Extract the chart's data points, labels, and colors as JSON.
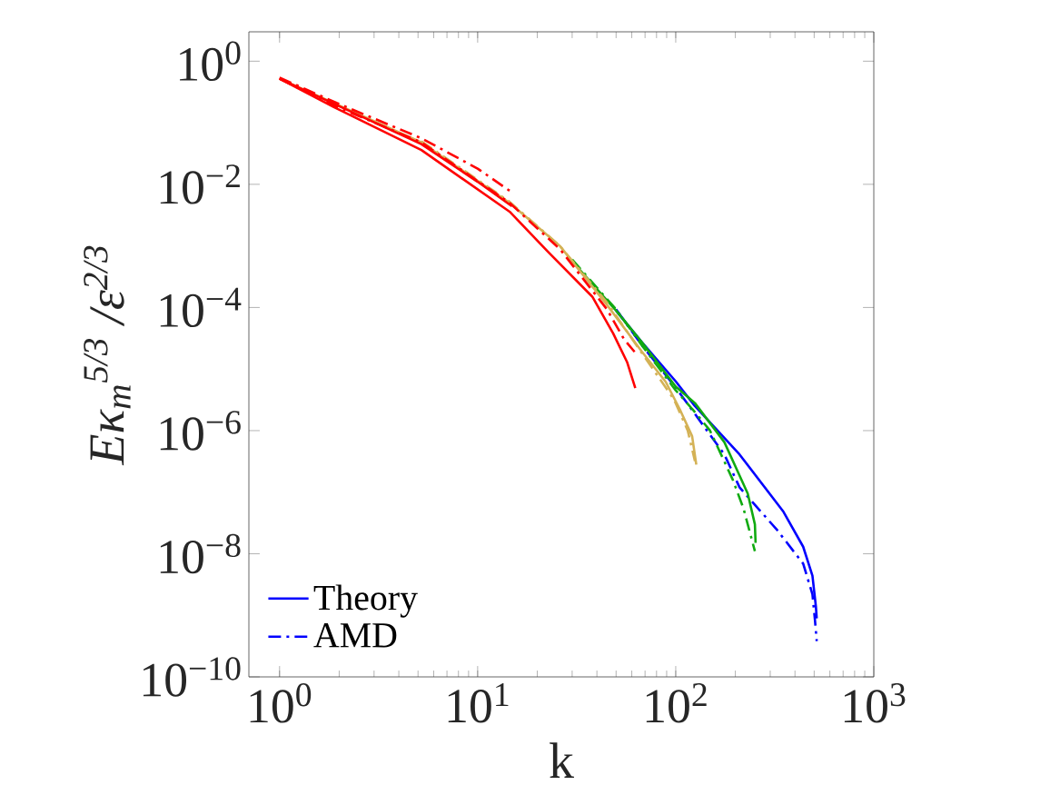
{
  "chart_data": {
    "type": "line",
    "xlabel": "k",
    "ylabel": "Eκ$_{m}$$^{5/3}$ /ε$^{2/3}$",
    "log": "xy",
    "xlim": [
      0.7,
      1000
    ],
    "ylim": [
      1e-10,
      3
    ],
    "xticks": [
      {
        "value": 1,
        "label": "10$^{0}$"
      },
      {
        "value": 10,
        "label": "10$^{1}$"
      },
      {
        "value": 100,
        "label": "10$^{2}$"
      },
      {
        "value": 1000,
        "label": "10$^{3}$"
      }
    ],
    "yticks": [
      {
        "value": 1e-10,
        "label": "10$^{−10}$"
      },
      {
        "value": 1e-08,
        "label": "10$^{−8}$"
      },
      {
        "value": 1e-06,
        "label": "10$^{−6}$"
      },
      {
        "value": 0.0001,
        "label": "10$^{−4}$"
      },
      {
        "value": 0.01,
        "label": "10$^{−2}$"
      },
      {
        "value": 1,
        "label": "10$^{0}$"
      }
    ],
    "legend": "bottom left",
    "series": [
      {
        "color": "#0000ff",
        "line_style": "solid",
        "name": "Theory",
        "x": [
          50,
          67,
          100,
          125,
          210,
          350,
          440,
          490,
          510,
          515
        ],
        "values": [
          8.9e-05,
          2.8e-05,
          6.3e-06,
          2.5e-06,
          4.1e-07,
          4.8e-08,
          1.3e-08,
          4.4e-09,
          1.4e-09,
          8.9e-10
        ]
      },
      {
        "color": "#0000ff",
        "line_style": "dashdot",
        "name": "AMD",
        "x": [
          50,
          67,
          100,
          176,
          210,
          326,
          440,
          490,
          505,
          515
        ],
        "values": [
          9.3e-05,
          2.5e-05,
          5e-06,
          4.1e-07,
          1.2e-07,
          2.4e-08,
          6.9e-09,
          2.2e-09,
          8.1e-10,
          3.8e-10
        ]
      },
      {
        "color": "#10aa10",
        "line_style": "solid",
        "x": [
          30,
          50,
          67,
          100,
          125,
          176,
          231,
          251,
          253
        ],
        "values": [
          0.00056,
          8.9e-05,
          2.8e-05,
          5.2e-06,
          2.8e-06,
          6.5e-07,
          9.5e-08,
          3e-08,
          1.5e-08
        ]
      },
      {
        "color": "#10aa10",
        "line_style": "dashdot",
        "x": [
          30,
          50,
          67,
          100,
          125,
          149,
          194,
          220,
          251
        ],
        "values": [
          0.0006,
          9.3e-05,
          2.5e-05,
          4.5e-06,
          2e-06,
          1e-06,
          1.6e-07,
          5.4e-08,
          1.1e-08
        ]
      },
      {
        "color": "#d4b256",
        "line_style": "solid",
        "x": [
          1,
          5.2,
          14.5,
          26,
          45,
          67.6,
          89,
          105,
          121,
          127
        ],
        "values": [
          0.52,
          0.048,
          0.005,
          0.001,
          0.00011,
          1.9e-05,
          6.2e-06,
          2.2e-06,
          8.1e-07,
          2.8e-07
        ]
      },
      {
        "color": "#d4b256",
        "line_style": "dashdot",
        "x": [
          5.2,
          14.5,
          26,
          45,
          67.6,
          98,
          115,
          125
        ],
        "values": [
          0.05,
          0.0052,
          0.001,
          0.00012,
          1.8e-05,
          3.2e-06,
          1e-06,
          3.2e-07
        ]
      },
      {
        "color": "#ff0000",
        "line_style": "solid",
        "x": [
          1,
          1.88,
          5.2,
          14.5,
          22.6,
          37.9,
          48.3,
          56.8,
          62.5
        ],
        "values": [
          0.52,
          0.18,
          0.036,
          0.0036,
          0.00081,
          0.00015,
          3.8e-05,
          1.3e-05,
          4.9e-06
        ]
      },
      {
        "color": "#ff0000",
        "line_style": "dashdot",
        "x": [
          1,
          1.88,
          5.2,
          14.5,
          26,
          45,
          55,
          62
        ],
        "values": [
          0.52,
          0.19,
          0.048,
          0.005,
          0.00089,
          9.3e-05,
          3e-05,
          1.9e-05
        ]
      },
      {
        "color": "#ff0000",
        "line_style": "solid",
        "x": [
          1,
          5.2,
          10,
          14.9
        ],
        "values": [
          0.52,
          0.045,
          0.011,
          0.0044
        ]
      },
      {
        "color": "#ff0000",
        "line_style": "dashdot",
        "x": [
          1,
          1.94,
          5.2,
          10,
          14.9
        ],
        "values": [
          0.54,
          0.21,
          0.056,
          0.018,
          0.0074
        ]
      }
    ]
  }
}
